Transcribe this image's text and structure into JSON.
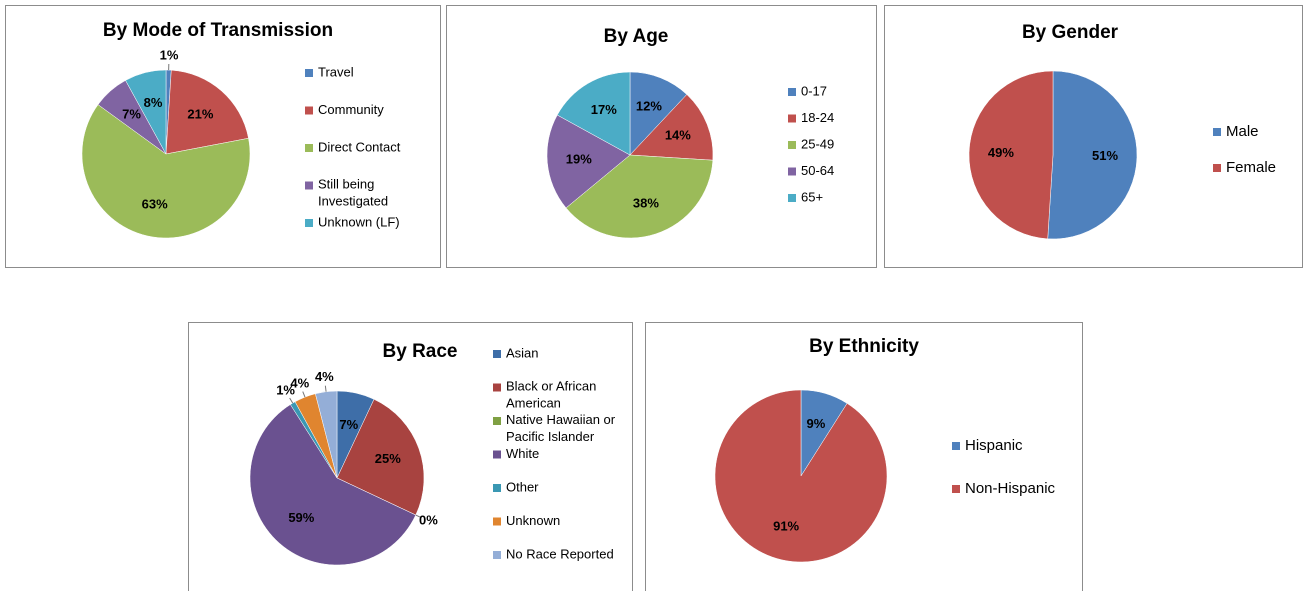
{
  "chart_data": [
    {
      "type": "pie",
      "title": "By Mode of Transmission",
      "categories": [
        "Travel",
        "Community",
        "Direct Contact",
        "Still being Investigated",
        "Unknown (LF)"
      ],
      "values": [
        1,
        21,
        63,
        7,
        8
      ],
      "value_labels": [
        "1%",
        "21%",
        "63%",
        "7%",
        "8%"
      ],
      "colors": [
        "#4f81bd",
        "#c0504d",
        "#9bbb59",
        "#8064a2",
        "#4bacc6"
      ],
      "legend": "right"
    },
    {
      "type": "pie",
      "title": "By Age",
      "categories": [
        "0-17",
        "18-24",
        "25-49",
        "50-64",
        "65+"
      ],
      "values": [
        12,
        14,
        38,
        19,
        17
      ],
      "value_labels": [
        "12%",
        "14%",
        "38%",
        "19%",
        "17%"
      ],
      "colors": [
        "#4f81bd",
        "#c0504d",
        "#9bbb59",
        "#8064a2",
        "#4bacc6"
      ],
      "legend": "right"
    },
    {
      "type": "pie",
      "title": "By Gender",
      "categories": [
        "Male",
        "Female"
      ],
      "values": [
        51,
        49
      ],
      "value_labels": [
        "51%",
        "49%"
      ],
      "colors": [
        "#4f81bd",
        "#c0504d"
      ],
      "legend": "right"
    },
    {
      "type": "pie",
      "title": "By Race",
      "categories": [
        "Asian",
        "Black or African American",
        "Native Hawaiian or Pacific Islander",
        "White",
        "Other",
        "Unknown",
        "No Race Reported"
      ],
      "values": [
        7,
        25,
        0,
        59,
        1,
        4,
        4
      ],
      "value_labels": [
        "7%",
        "25%",
        "0%",
        "59%",
        "1%",
        "4%",
        "4%"
      ],
      "colors": [
        "#3e6ea8",
        "#a84340",
        "#7fa043",
        "#6a5190",
        "#3a98b3",
        "#e0852f",
        "#94aed7"
      ],
      "legend": "right"
    },
    {
      "type": "pie",
      "title": "By Ethnicity",
      "categories": [
        "Hispanic",
        "Non-Hispanic"
      ],
      "values": [
        9,
        91
      ],
      "value_labels": [
        "9%",
        "91%"
      ],
      "colors": [
        "#4f81bd",
        "#c0504d"
      ],
      "legend": "right"
    }
  ]
}
